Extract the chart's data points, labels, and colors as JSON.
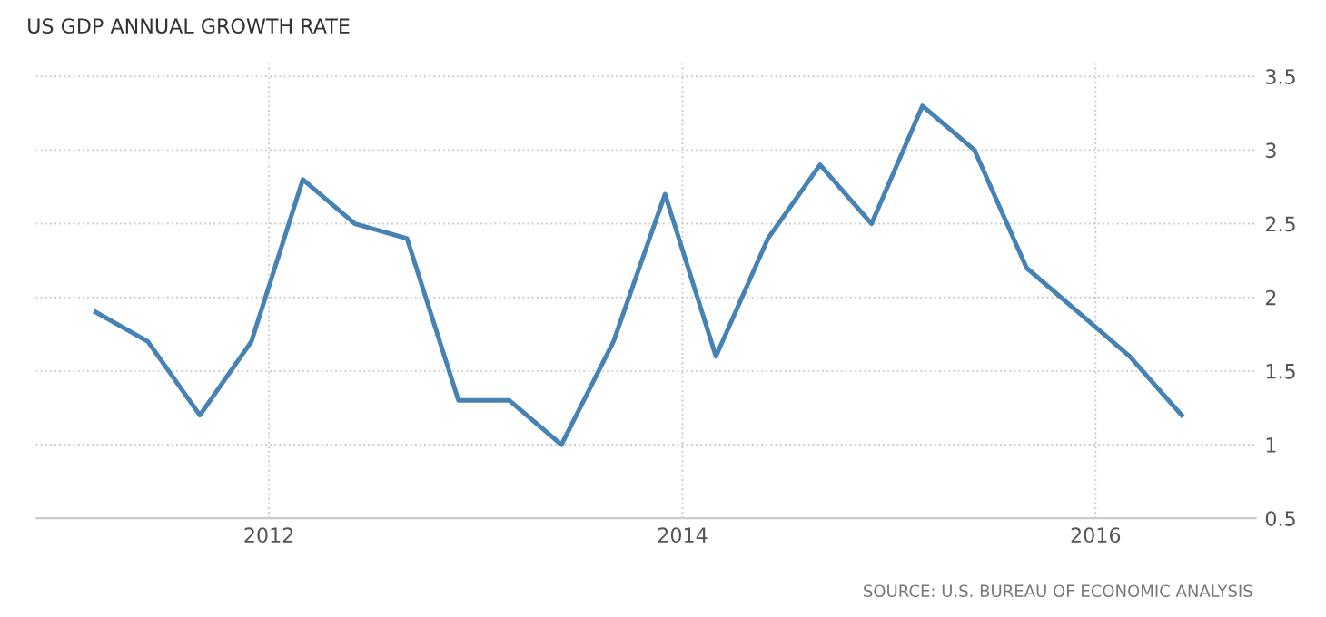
{
  "chart_data": {
    "type": "line",
    "title": "US GDP ANNUAL GROWTH RATE",
    "x": [
      "2011-03-01",
      "2011-06-01",
      "2011-09-01",
      "2011-12-01",
      "2012-03-01",
      "2012-06-01",
      "2012-09-01",
      "2012-12-01",
      "2013-03-01",
      "2013-06-01",
      "2013-09-01",
      "2013-12-01",
      "2014-03-01",
      "2014-06-01",
      "2014-09-01",
      "2014-12-01",
      "2015-03-01",
      "2015-06-01",
      "2015-09-01",
      "2015-12-01",
      "2016-03-01",
      "2016-06-01"
    ],
    "series": [
      {
        "color": "#4682b4",
        "values": [
          1.9,
          1.7,
          1.2,
          1.7,
          2.8,
          2.5,
          2.4,
          1.3,
          1.3,
          1.0,
          1.7,
          2.7,
          1.6,
          2.4,
          2.9,
          2.5,
          3.3,
          3.0,
          2.2,
          1.9,
          1.6,
          1.2
        ]
      }
    ],
    "xlim": [
      "2010-11-15",
      "2016-10-10"
    ],
    "xticks": [
      "2012",
      "2014",
      "2016"
    ],
    "ylim": [
      0.5,
      3.6
    ],
    "yticks": [
      0.5,
      1,
      1.5,
      2,
      2.5,
      3,
      3.5
    ],
    "grid": true,
    "marker": "none",
    "line_style": "solid",
    "annotations": [
      "SOURCE: U.S. BUREAU OF ECONOMIC ANALYSIS"
    ]
  }
}
